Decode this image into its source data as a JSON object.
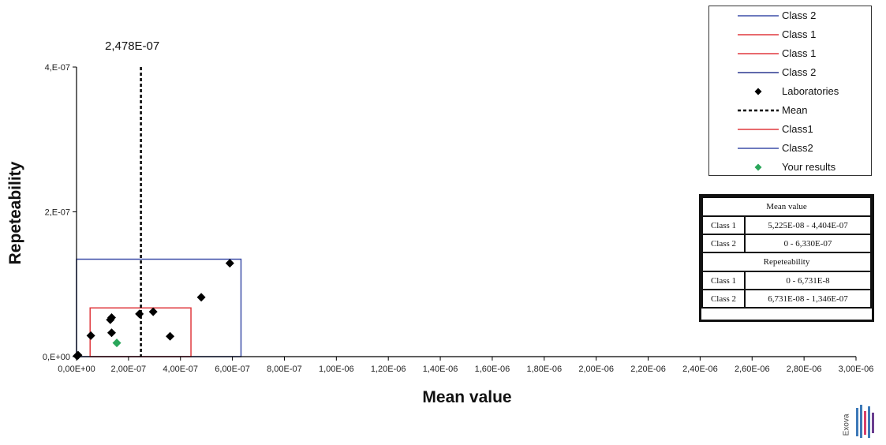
{
  "chart_data": {
    "type": "scatter",
    "xlabel": "Mean value",
    "ylabel": "Repeteability",
    "xlim": [
      0,
      3e-06
    ],
    "ylim": [
      0,
      4e-07
    ],
    "x_ticks": [
      0,
      2e-07,
      4e-07,
      6e-07,
      8e-07,
      1e-06,
      1.2e-06,
      1.4e-06,
      1.6e-06,
      1.8e-06,
      2e-06,
      2.2e-06,
      2.4e-06,
      2.6e-06,
      2.8e-06,
      3e-06
    ],
    "x_tick_labels": [
      "0,00E+00",
      "2,00E-07",
      "4,00E-07",
      "6,00E-07",
      "8,00E-07",
      "1,00E-06",
      "1,20E-06",
      "1,40E-06",
      "1,60E-06",
      "1,80E-06",
      "2,00E-06",
      "2,20E-06",
      "2,40E-06",
      "2,60E-06",
      "2,80E-06",
      "3,00E-06"
    ],
    "y_ticks": [
      0,
      2e-07,
      4e-07
    ],
    "y_tick_labels": [
      "0,E+00",
      "2,E-07",
      "4,E-07"
    ],
    "mean": {
      "x": 2.478e-07,
      "label": "2,478E-07",
      "legend": "Mean"
    },
    "class1_box": {
      "x": [
        5.225e-08,
        4.404e-07
      ],
      "y": [
        0,
        6.731e-08
      ],
      "color": "#e0393e"
    },
    "class2_box": {
      "x": [
        0,
        6.33e-07
      ],
      "y": [
        0,
        1.346e-07
      ],
      "color": "#3d4ea8"
    },
    "series": [
      {
        "name": "Laboratories",
        "marker": "diamond",
        "color": "#000000",
        "points": [
          [
            2e-09,
            1e-09
          ],
          [
            6e-09,
            2e-09
          ],
          [
            5.5e-08,
            2.9e-08
          ],
          [
            1.3e-07,
            5.1e-08
          ],
          [
            1.35e-07,
            5.4e-08
          ],
          [
            1.35e-07,
            3.3e-08
          ],
          [
            2.42e-07,
            5.9e-08
          ],
          [
            2.95e-07,
            6.2e-08
          ],
          [
            3.6e-07,
            2.8e-08
          ],
          [
            4.8e-07,
            8.2e-08
          ],
          [
            5.9e-07,
            1.29e-07
          ]
        ]
      },
      {
        "name": "Your results",
        "marker": "diamond",
        "color": "#2aa65a",
        "points": [
          [
            1.55e-07,
            1.9e-08
          ]
        ]
      }
    ],
    "legend_items": [
      {
        "label": "Class 2",
        "kind": "line",
        "color": "#3d4ea8"
      },
      {
        "label": "Class 1",
        "kind": "line",
        "color": "#e0393e"
      },
      {
        "label": "Class 1",
        "kind": "line",
        "color": "#e0393e"
      },
      {
        "label": "Class 2",
        "kind": "line",
        "color": "#2b3990"
      },
      {
        "label": "Laboratories",
        "kind": "diamond",
        "color": "#000000"
      },
      {
        "label": "Mean",
        "kind": "dashed",
        "color": "#000000"
      },
      {
        "label": "Class1",
        "kind": "line",
        "color": "#e0393e"
      },
      {
        "label": "Class2",
        "kind": "line",
        "color": "#3d4ea8"
      },
      {
        "label": "Your results",
        "kind": "diamond",
        "color": "#2aa65a"
      }
    ],
    "legend_placement": "top-right",
    "grid": false,
    "ranges_table": {
      "mean_header": "Mean value",
      "mean_rows": [
        {
          "class": "Class 1",
          "range": "5,225E-08 - 4,404E-07"
        },
        {
          "class": "Class 2",
          "range": "0 - 6,330E-07"
        }
      ],
      "rep_header": "Repeteability",
      "rep_rows": [
        {
          "class": "Class 1",
          "range": "0 - 6,731E-8"
        },
        {
          "class": "Class 2",
          "range": "6,731E-08 - 1,346E-07"
        }
      ]
    },
    "logo_text": "Exova"
  }
}
